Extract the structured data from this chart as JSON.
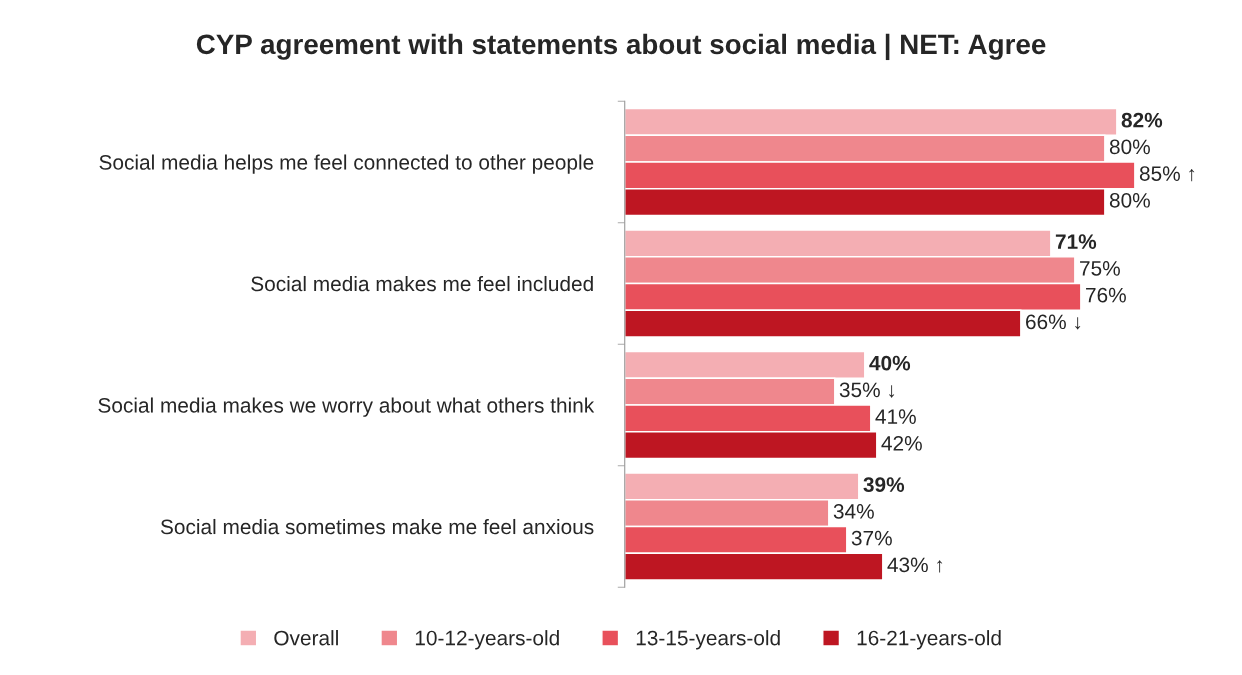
{
  "chart_data": {
    "type": "bar",
    "orientation": "horizontal",
    "title": "CYP agreement with statements about social media | NET: Agree",
    "categories": [
      "Social media helps me feel connected to other people",
      "Social media makes me feel included",
      "Social media makes we worry about what others think",
      "Social media sometimes make me feel anxious"
    ],
    "series": [
      {
        "name": "Overall",
        "color": "#f4aeb3",
        "values": [
          82,
          71,
          40,
          39
        ],
        "value_labels": [
          "82%",
          "71%",
          "40%",
          "39%"
        ]
      },
      {
        "name": "10-12-years-old",
        "color": "#ef878d",
        "values": [
          80,
          75,
          35,
          34
        ],
        "value_labels": [
          "80%",
          "75%",
          "35% ↓",
          "34%"
        ]
      },
      {
        "name": "13-15-years-old",
        "color": "#e8505b",
        "values": [
          85,
          76,
          41,
          37
        ],
        "value_labels": [
          "85% ↑",
          "76%",
          "41%",
          "37%"
        ]
      },
      {
        "name": "16-21-years-old",
        "color": "#be1622",
        "values": [
          80,
          66,
          42,
          43
        ],
        "value_labels": [
          "80%",
          "66% ↓",
          "42%",
          "43% ↑"
        ]
      }
    ],
    "legend": "bottom",
    "grid": false,
    "tick_labels": "y"
  }
}
